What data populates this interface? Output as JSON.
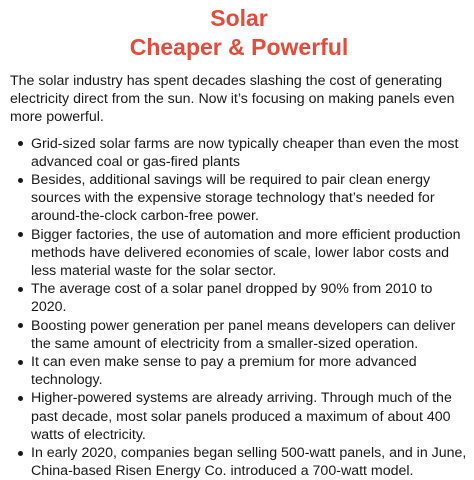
{
  "title": {
    "line1": "Solar",
    "line2": "Cheaper & Powerful",
    "color": "#e64a3b"
  },
  "intro": "The solar industry has spent decades slashing the cost of generating electricity direct from the sun. Now it’s focusing on making panels even more powerful.",
  "bullets": [
    "Grid-sized solar farms are now typically cheaper than even the most advanced coal or gas-fired plants",
    "Besides, additional savings will be required to pair clean energy sources with the expensive storage technology that’s needed for around-the-clock carbon-free power.",
    "Bigger factories, the use of automation and more efficient production methods have delivered economies of scale, lower labor costs and less material waste for the solar sector.",
    "The average cost of a solar panel dropped by 90% from 2010 to 2020.",
    "Boosting power generation per panel means developers can deliver the same amount of electricity from a smaller-sized operation.",
    "It can even make sense to pay a premium for more advanced technology.",
    "Higher-powered systems are already arriving. Through much of the past decade, most solar panels produced a maximum of about 400 watts of electricity.",
    "In early 2020, companies began selling 500-watt panels, and in June, China-based Risen Energy Co. introduced a 700-watt model."
  ]
}
